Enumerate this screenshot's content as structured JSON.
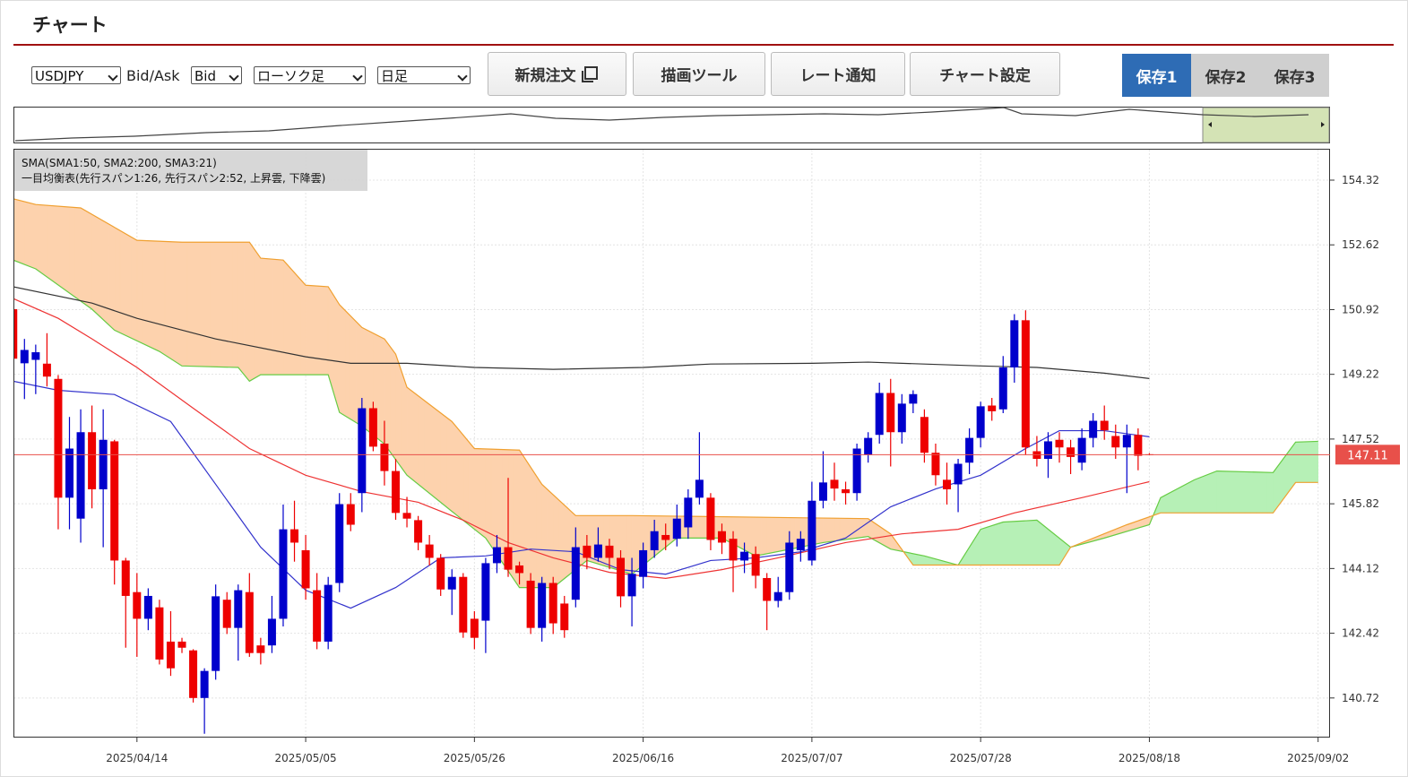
{
  "header": {
    "title": "チャート"
  },
  "toolbar": {
    "symbol": "USDJPY",
    "price_type_label": "Bid/Ask",
    "price_type": "Bid",
    "chart_type": "ローソク足",
    "period": "日足",
    "buttons": [
      "新規注文",
      "描画ツール",
      "レート通知",
      "チャート設定"
    ],
    "save_tabs": [
      "保存1",
      "保存2",
      "保存3"
    ],
    "active_save_tab": 0
  },
  "chart_data": {
    "type": "candlestick",
    "legend_lines": [
      "SMA(SMA1:50, SMA2:200, SMA3:21)",
      "一目均衡表(先行スパン1:26, 先行スパン2:52, 上昇雲, 下降雲)"
    ],
    "xlim": [
      -10.9,
      106.06
    ],
    "xticks": [
      {
        "value": 0,
        "label": "2025/04/14"
      },
      {
        "value": 15,
        "label": "2025/05/05"
      },
      {
        "value": 30,
        "label": "2025/05/26"
      },
      {
        "value": 45,
        "label": "2025/06/16"
      },
      {
        "value": 60,
        "label": "2025/07/07"
      },
      {
        "value": 75,
        "label": "2025/07/28"
      },
      {
        "value": 90,
        "label": "2025/08/18"
      },
      {
        "value": 105,
        "label": "2025/09/02"
      }
    ],
    "ylim": [
      139.68,
      155.12
    ],
    "yticks": [
      154.32,
      152.62,
      150.92,
      149.22,
      147.52,
      145.82,
      144.12,
      142.42,
      140.72
    ],
    "grid": true,
    "up_color": "#0000cc",
    "down_color": "#ee0000",
    "current_price": 147.11,
    "current_price_color": "#e8504a",
    "candles": {
      "x": [
        -11,
        -10,
        -9,
        -8,
        -7,
        -6,
        -5,
        -4,
        -3,
        -2,
        -1,
        0,
        1,
        2,
        3,
        4,
        5,
        6,
        7,
        8,
        9,
        10,
        11,
        12,
        13,
        14,
        15,
        16,
        17,
        18,
        19,
        20,
        21,
        22,
        23,
        24,
        25,
        26,
        27,
        28,
        29,
        30,
        31,
        32,
        33,
        34,
        35,
        36,
        37,
        38,
        39,
        40,
        41,
        42,
        43,
        44,
        45,
        46,
        47,
        48,
        49,
        50,
        51,
        52,
        53,
        54,
        55,
        56,
        57,
        58,
        59,
        60,
        61,
        62,
        63,
        64,
        65,
        66,
        67,
        68,
        69,
        70,
        71,
        72,
        73,
        74,
        75,
        76,
        77,
        78,
        79,
        80,
        81,
        82,
        83,
        84,
        85,
        86,
        87,
        88,
        89,
        90
      ],
      "open": [
        150.93,
        149.51,
        149.6,
        149.5,
        149.1,
        145.98,
        145.43,
        147.7,
        146.2,
        147.46,
        144.33,
        143.5,
        142.8,
        143.1,
        142.2,
        142.2,
        141.97,
        140.72,
        141.43,
        143.3,
        142.56,
        143.5,
        142.1,
        142.1,
        142.8,
        145.15,
        144.6,
        143.55,
        142.2,
        143.74,
        145.81,
        146.1,
        148.33,
        147.4,
        146.68,
        145.58,
        145.39,
        144.75,
        144.4,
        143.57,
        143.9,
        142.8,
        142.75,
        144.26,
        144.68,
        144.2,
        143.8,
        142.56,
        143.74,
        143.2,
        143.3,
        144.72,
        144.4,
        144.72,
        144.4,
        143.39,
        143.9,
        144.6,
        145.0,
        144.9,
        145.2,
        145.98,
        145.98,
        145.1,
        144.9,
        144.33,
        144.5,
        143.87,
        143.27,
        143.5,
        144.6,
        144.33,
        145.9,
        146.45,
        146.2,
        146.1,
        147.1,
        147.63,
        148.73,
        147.7,
        148.45,
        148.1,
        147.16,
        146.45,
        146.33,
        146.9,
        147.55,
        148.4,
        148.3,
        149.4,
        150.64,
        147.2,
        147.0,
        147.5,
        147.3,
        146.9,
        147.55,
        148.0,
        147.6,
        147.3,
        147.63,
        147.12
      ],
      "high": [
        150.93,
        150.15,
        150.0,
        150.3,
        149.2,
        148.1,
        148.3,
        148.4,
        148.3,
        147.5,
        144.4,
        144.0,
        143.6,
        143.3,
        143.0,
        142.3,
        142.0,
        141.5,
        143.7,
        143.5,
        143.7,
        144.0,
        142.3,
        143.4,
        145.8,
        145.9,
        145.0,
        144.0,
        143.9,
        146.1,
        146.1,
        148.6,
        148.5,
        148.0,
        147.0,
        146.0,
        145.5,
        145.0,
        144.5,
        144.1,
        144.0,
        143.0,
        144.4,
        145.0,
        146.5,
        144.3,
        144.0,
        143.9,
        143.9,
        143.4,
        145.2,
        145.0,
        145.2,
        144.9,
        144.6,
        144.4,
        144.8,
        145.4,
        145.3,
        145.8,
        146.2,
        147.7,
        146.1,
        145.3,
        145.1,
        144.8,
        144.7,
        144.0,
        143.9,
        145.1,
        145.1,
        146.4,
        147.2,
        146.9,
        146.4,
        147.4,
        147.7,
        149.0,
        149.1,
        148.7,
        148.8,
        148.3,
        147.4,
        146.9,
        147.0,
        147.8,
        148.5,
        148.6,
        149.7,
        150.8,
        150.9,
        147.6,
        147.7,
        147.7,
        147.5,
        147.8,
        148.2,
        148.4,
        147.9,
        147.9,
        147.8,
        147.15
      ],
      "low": [
        149.4,
        148.57,
        148.7,
        148.9,
        145.15,
        145.15,
        144.8,
        145.7,
        144.68,
        143.7,
        142.04,
        141.8,
        142.5,
        141.6,
        141.3,
        141.9,
        140.6,
        139.78,
        141.2,
        142.4,
        141.7,
        141.8,
        141.6,
        141.9,
        142.6,
        144.3,
        143.3,
        142.0,
        142.0,
        143.5,
        145.1,
        145.6,
        147.2,
        146.3,
        145.4,
        145.2,
        144.6,
        144.2,
        143.4,
        142.9,
        142.3,
        142.0,
        141.9,
        144.0,
        143.9,
        143.7,
        142.4,
        142.2,
        142.4,
        142.3,
        143.1,
        144.1,
        144.3,
        144.1,
        143.1,
        142.6,
        143.6,
        144.4,
        144.6,
        144.7,
        144.9,
        145.8,
        144.6,
        144.5,
        143.5,
        144.0,
        143.6,
        142.5,
        143.1,
        143.3,
        144.3,
        144.2,
        145.7,
        145.9,
        145.8,
        145.9,
        146.9,
        147.4,
        146.8,
        147.4,
        148.2,
        146.9,
        146.3,
        145.8,
        145.6,
        146.6,
        147.3,
        148.0,
        148.2,
        149.0,
        147.1,
        146.8,
        146.5,
        146.9,
        146.6,
        146.7,
        147.3,
        147.5,
        147.0,
        146.1,
        146.7,
        147.1
      ],
      "close": [
        149.63,
        149.86,
        149.8,
        149.16,
        145.98,
        147.27,
        147.7,
        146.2,
        147.5,
        144.33,
        143.4,
        142.8,
        143.4,
        141.73,
        141.5,
        142.04,
        140.72,
        141.43,
        143.39,
        142.56,
        143.55,
        141.9,
        141.9,
        142.8,
        145.15,
        144.8,
        143.6,
        142.2,
        143.69,
        145.81,
        145.27,
        148.33,
        147.32,
        146.68,
        145.58,
        145.43,
        144.8,
        144.4,
        143.57,
        143.9,
        142.44,
        142.3,
        144.26,
        144.68,
        144.09,
        144.0,
        142.56,
        143.74,
        142.68,
        142.5,
        144.68,
        144.4,
        144.75,
        144.4,
        143.39,
        143.98,
        144.6,
        145.1,
        144.87,
        145.43,
        145.98,
        146.45,
        144.87,
        144.8,
        144.33,
        144.56,
        143.93,
        143.27,
        143.5,
        144.8,
        144.9,
        145.9,
        146.38,
        146.22,
        146.1,
        147.27,
        147.55,
        148.73,
        147.7,
        148.45,
        148.7,
        147.16,
        146.57,
        146.2,
        146.87,
        147.55,
        148.38,
        148.25,
        149.4,
        150.64,
        147.3,
        147.0,
        147.46,
        147.3,
        147.05,
        147.55,
        148.0,
        147.75,
        147.3,
        147.63,
        147.08,
        147.11
      ]
    },
    "lines": [
      {
        "color": "#ee3333",
        "x": [
          -11,
          -7,
          -4,
          0,
          5,
          10,
          15,
          20,
          25,
          29,
          33,
          37,
          42,
          47,
          52,
          57,
          63,
          68,
          73,
          78,
          84,
          90
        ],
        "values": [
          151.21,
          150.69,
          150.15,
          149.4,
          148.33,
          147.27,
          146.57,
          146.14,
          145.86,
          145.39,
          144.8,
          144.4,
          144.02,
          143.86,
          144.09,
          144.4,
          144.8,
          145.03,
          145.15,
          145.58,
          145.98,
          146.4
        ]
      },
      {
        "color": "#333333",
        "x": [
          -11,
          -4,
          0,
          7,
          15,
          19,
          24,
          30,
          37,
          45,
          51,
          60,
          65,
          75,
          80,
          86,
          90
        ],
        "values": [
          151.52,
          151.09,
          150.69,
          150.15,
          149.68,
          149.51,
          149.51,
          149.4,
          149.35,
          149.4,
          149.49,
          149.51,
          149.54,
          149.44,
          149.4,
          149.25,
          149.11
        ]
      },
      {
        "color": "#3333cc",
        "x": [
          -11,
          -7,
          -2,
          3,
          7,
          11,
          15,
          19,
          23,
          27,
          31,
          35,
          39,
          43,
          47,
          51,
          55,
          59,
          63,
          67,
          71,
          75,
          79,
          82,
          86,
          90
        ],
        "values": [
          149.04,
          148.8,
          148.69,
          147.98,
          146.33,
          144.68,
          143.55,
          143.08,
          143.62,
          144.4,
          144.45,
          144.63,
          144.56,
          144.09,
          143.97,
          144.33,
          144.4,
          144.56,
          144.92,
          145.74,
          146.21,
          146.57,
          147.27,
          147.74,
          147.74,
          147.58
        ]
      }
    ],
    "cloud": {
      "up_fill": "#b6f0b6",
      "down_fill": "#fdd2ad",
      "span1": {
        "color": "#66cc44",
        "x": [
          -11,
          -9,
          -4,
          -2,
          2,
          4,
          9,
          10,
          11,
          17,
          18,
          20,
          22,
          24,
          28,
          31,
          34,
          37,
          40,
          44,
          48,
          52,
          55,
          61,
          65,
          67,
          70,
          73,
          75,
          77,
          80,
          83,
          86,
          90,
          91,
          94,
          96,
          101,
          103,
          105
        ],
        "values": [
          152.22,
          151.99,
          150.93,
          150.38,
          149.82,
          149.44,
          149.4,
          149.04,
          149.21,
          149.21,
          148.22,
          147.86,
          147.39,
          146.57,
          145.62,
          144.92,
          143.62,
          143.62,
          144.33,
          143.97,
          144.92,
          144.92,
          144.45,
          144.8,
          144.96,
          144.63,
          144.45,
          144.21,
          145.15,
          145.34,
          145.39,
          144.68,
          144.92,
          145.27,
          145.98,
          146.45,
          146.68,
          146.64,
          147.44,
          147.46
        ]
      },
      "span2": {
        "color": "#f0a030",
        "x": [
          -11,
          -9,
          -5,
          0,
          4,
          10,
          11,
          13,
          15,
          17,
          18,
          20,
          22,
          23,
          24,
          28,
          30,
          34,
          36,
          39,
          44,
          65,
          67,
          69,
          82,
          83,
          88,
          91,
          101,
          103,
          105
        ],
        "values": [
          153.83,
          153.68,
          153.59,
          152.74,
          152.69,
          152.69,
          152.27,
          152.22,
          151.56,
          151.52,
          151.05,
          150.45,
          150.15,
          149.75,
          148.88,
          147.98,
          147.27,
          147.23,
          146.33,
          145.51,
          145.51,
          145.43,
          145.03,
          144.21,
          144.21,
          144.68,
          145.27,
          145.58,
          145.58,
          146.38,
          146.38
        ]
      }
    }
  }
}
